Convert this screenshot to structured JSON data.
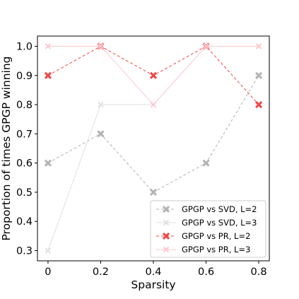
{
  "chart_data": {
    "type": "line",
    "title": "",
    "xlabel": "Sparsity",
    "ylabel": "Proportion of times GPGP winning",
    "x": [
      0,
      0.2,
      0.4,
      0.6,
      0.8
    ],
    "x_tick_labels": [
      "0",
      "0.2",
      "0.4",
      "0.6",
      "0.8"
    ],
    "xlim": [
      -0.04,
      0.84
    ],
    "ylim": [
      0.265,
      1.035
    ],
    "y_ticks": [
      0.3,
      0.4,
      0.5,
      0.6,
      0.7,
      0.8,
      0.9,
      1.0
    ],
    "y_tick_labels": [
      "0.3",
      "0.4",
      "0.5",
      "0.6",
      "0.7",
      "0.8",
      "0.9",
      "1.0"
    ],
    "grid": false,
    "legend_position": "lower right",
    "series": [
      {
        "name": "GPGP vs SVD, L=2",
        "values": [
          0.6,
          0.7,
          0.5,
          0.6,
          0.9
        ],
        "color": "#b3b3b3",
        "dashed": true,
        "marker": "X"
      },
      {
        "name": "GPGP vs SVD, L=3",
        "values": [
          0.3,
          0.8,
          0.8,
          1.0,
          1.0
        ],
        "color": "#e0e0e0",
        "dashed": false,
        "marker": "x"
      },
      {
        "name": "GPGP vs PR, L=2",
        "values": [
          0.9,
          1.0,
          0.9,
          1.0,
          0.8
        ],
        "color": "#f04545",
        "dashed": true,
        "marker": "X"
      },
      {
        "name": "GPGP vs PR, L=3",
        "values": [
          1.0,
          1.0,
          0.8,
          1.0,
          1.0
        ],
        "color": "#ffc8cf",
        "dashed": false,
        "marker": "x"
      }
    ]
  }
}
